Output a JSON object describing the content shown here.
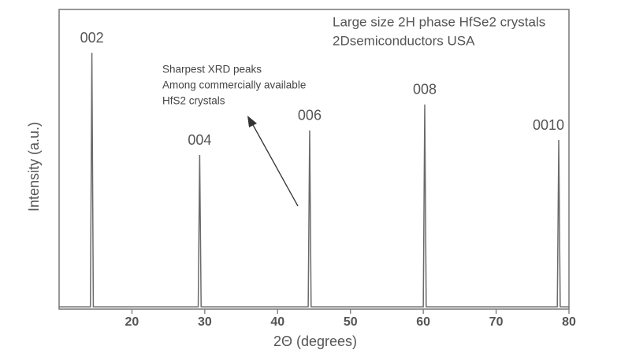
{
  "chart_data": {
    "type": "line",
    "title_lines": [
      "Large size 2H phase HfSe2 crystals",
      "2Dsemiconductors USA"
    ],
    "note_lines": [
      "Sharpest XRD peaks",
      "Among commercially available",
      "HfS2 crystals"
    ],
    "xlabel": "2Θ (degrees)",
    "ylabel": "Intensity (a.u.)",
    "peak_labels": [
      "002",
      "004",
      "006",
      "008",
      "0010"
    ],
    "x": [
      10,
      14.3,
      14.5,
      14.7,
      29.1,
      29.3,
      29.5,
      44.2,
      44.4,
      44.6,
      60.0,
      60.2,
      60.4,
      78.4,
      78.6,
      78.8,
      80
    ],
    "series": [
      {
        "color": "#6b6b6b",
        "values": [
          0.5,
          0.5,
          85.5,
          0.5,
          0.5,
          51.3,
          0.5,
          0.5,
          59.5,
          0.5,
          0.5,
          68.2,
          0.5,
          0.5,
          56.3,
          0.5,
          0.5
        ]
      }
    ],
    "xlim": [
      10,
      80
    ],
    "ylim": [
      0,
      100
    ],
    "xticks": [
      20,
      30,
      40,
      50,
      60,
      70,
      80
    ]
  }
}
